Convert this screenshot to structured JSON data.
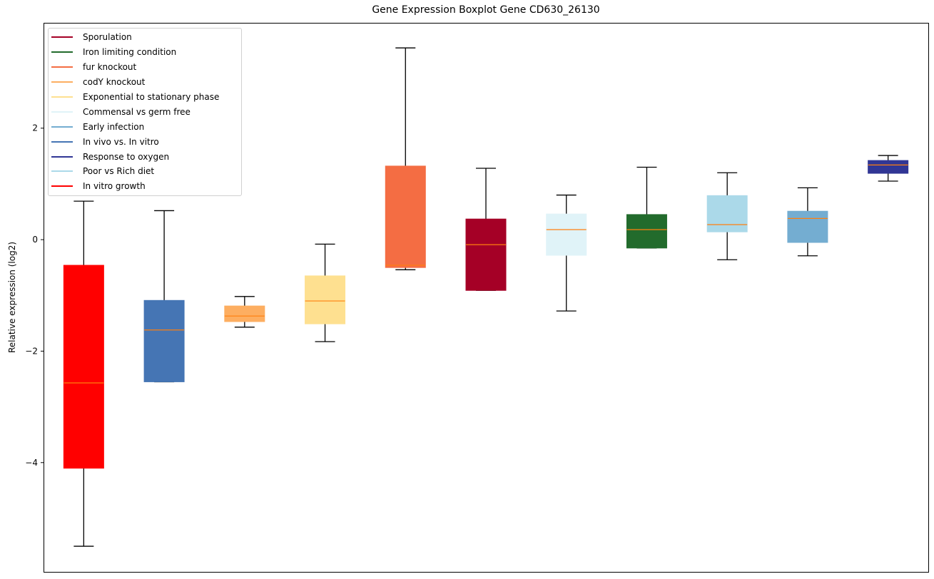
{
  "chart_data": {
    "type": "boxplot",
    "title": "Gene Expression Boxplot Gene CD630_26130",
    "xlabel": "",
    "ylabel": "Relative expression (log2)",
    "ylim": [
      -5.96,
      3.89
    ],
    "yticks": [
      -4,
      -2,
      2
    ],
    "ytick_labels": [
      "−4",
      "−2",
      "2"
    ],
    "ytick_zero": "0",
    "xticks_shown": false,
    "grid": false,
    "legend_position": "top-left",
    "boxes": [
      {
        "name": "In vitro growth",
        "color": "#ff0000",
        "min": -5.5,
        "q1": -4.1,
        "median": -2.57,
        "q3": -0.46,
        "max": 0.69
      },
      {
        "name": "In vivo vs. In vitro",
        "color": "#4575b4",
        "min": -2.55,
        "q1": -2.55,
        "median": -1.62,
        "q3": -1.09,
        "max": 0.52
      },
      {
        "name": "codY knockout",
        "color": "#fdae61",
        "min": -1.57,
        "q1": -1.47,
        "median": -1.37,
        "q3": -1.19,
        "max": -1.02
      },
      {
        "name": "Exponential to stationary phase",
        "color": "#fee090",
        "min": -1.83,
        "q1": -1.51,
        "median": -1.1,
        "q3": -0.65,
        "max": -0.08
      },
      {
        "name": "fur knockout",
        "color": "#f46d43",
        "min": -0.54,
        "q1": -0.5,
        "median": -0.46,
        "q3": 1.32,
        "max": 3.44
      },
      {
        "name": "Sporulation",
        "color": "#a50026",
        "min": -0.91,
        "q1": -0.91,
        "median": -0.09,
        "q3": 0.37,
        "max": 1.28
      },
      {
        "name": "Commensal vs germ free",
        "color": "#e0f3f8",
        "min": -1.28,
        "q1": -0.28,
        "median": 0.18,
        "q3": 0.46,
        "max": 0.8
      },
      {
        "name": "Iron limiting condition",
        "color": "#226b2c",
        "min": -0.15,
        "q1": -0.15,
        "median": 0.18,
        "q3": 0.45,
        "max": 1.3
      },
      {
        "name": "Poor vs Rich diet",
        "color": "#abd9e9",
        "min": -0.36,
        "q1": 0.14,
        "median": 0.27,
        "q3": 0.79,
        "max": 1.2
      },
      {
        "name": "Early infection",
        "color": "#74add1",
        "min": -0.29,
        "q1": -0.05,
        "median": 0.38,
        "q3": 0.51,
        "max": 0.93
      },
      {
        "name": "Response to oxygen",
        "color": "#313695",
        "min": 1.05,
        "q1": 1.19,
        "median": 1.34,
        "q3": 1.42,
        "max": 1.51
      }
    ],
    "median_color": "#ff7f0e",
    "legend": [
      {
        "label": "Sporulation",
        "color": "#a50026"
      },
      {
        "label": "Iron limiting condition",
        "color": "#226b2c"
      },
      {
        "label": "fur knockout",
        "color": "#f46d43"
      },
      {
        "label": "codY knockout",
        "color": "#fdae61"
      },
      {
        "label": "Exponential to stationary phase",
        "color": "#fee090"
      },
      {
        "label": "Commensal vs germ free",
        "color": "#e0f3f8"
      },
      {
        "label": "Early infection",
        "color": "#74add1"
      },
      {
        "label": "In vivo vs. In vitro",
        "color": "#4575b4"
      },
      {
        "label": "Response to oxygen",
        "color": "#313695"
      },
      {
        "label": "Poor vs Rich diet",
        "color": "#abd9e9"
      },
      {
        "label": "In vitro growth",
        "color": "#ff0000"
      }
    ]
  }
}
